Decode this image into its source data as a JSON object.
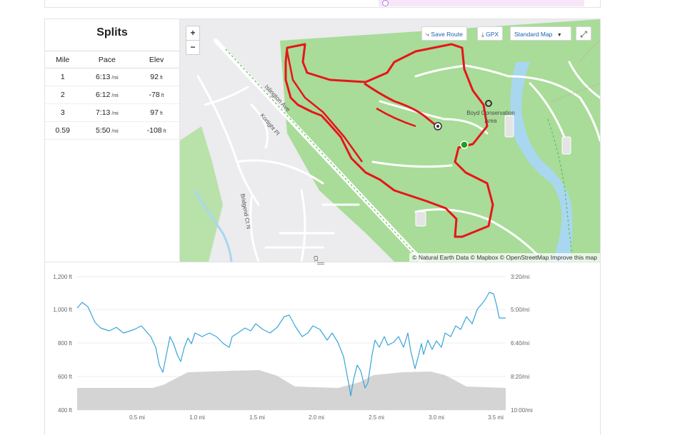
{
  "splits": {
    "title": "Splits",
    "headers": [
      "Mile",
      "Pace",
      "Elev"
    ],
    "rows": [
      {
        "mile": "1",
        "pace": "6:13",
        "pace_unit": "/mi",
        "elev": "92",
        "elev_unit": "ft"
      },
      {
        "mile": "2",
        "pace": "6:12",
        "pace_unit": "/mi",
        "elev": "-78",
        "elev_unit": "ft"
      },
      {
        "mile": "3",
        "pace": "7:13",
        "pace_unit": "/mi",
        "elev": "97",
        "elev_unit": "ft"
      },
      {
        "mile": "0.59",
        "pace": "5:50",
        "pace_unit": "/mi",
        "elev": "-108",
        "elev_unit": "ft"
      }
    ]
  },
  "map": {
    "zoom_in": "+",
    "zoom_out": "−",
    "save_route": "Save Route",
    "gpx": "GPX",
    "map_style": "Standard Map",
    "attribution": "© Natural Earth Data © Mapbox © OpenStreetMap Improve this map",
    "labels": {
      "road_1": "Islington Ave",
      "road_2": "Kortight Pl",
      "road_3": "Bridgend Ct N",
      "road_4": "Ct",
      "park_1": "Boyd Conservation",
      "park_2": "Area"
    },
    "colors": {
      "park": "#a8dc98",
      "route": "#e8141a",
      "river": "#a9d7f0",
      "start": "#1aa31a"
    }
  },
  "elevation_chart": {
    "left_axis": [
      "1,200 ft",
      "1,000 ft",
      "800 ft",
      "600 ft",
      "400 ft"
    ],
    "right_axis": [
      "3:20/mi",
      "5:00/mi",
      "6:40/mi",
      "8:20/mi",
      "10:00/mi"
    ],
    "x_axis": [
      "0.5 mi",
      "1.0 mi",
      "1.5 mi",
      "2.0 mi",
      "2.5 mi",
      "3.0 mi",
      "3.5 mi"
    ],
    "colors": {
      "pace": "#3aa4d8",
      "elevation": "#d4d4d4"
    }
  }
}
